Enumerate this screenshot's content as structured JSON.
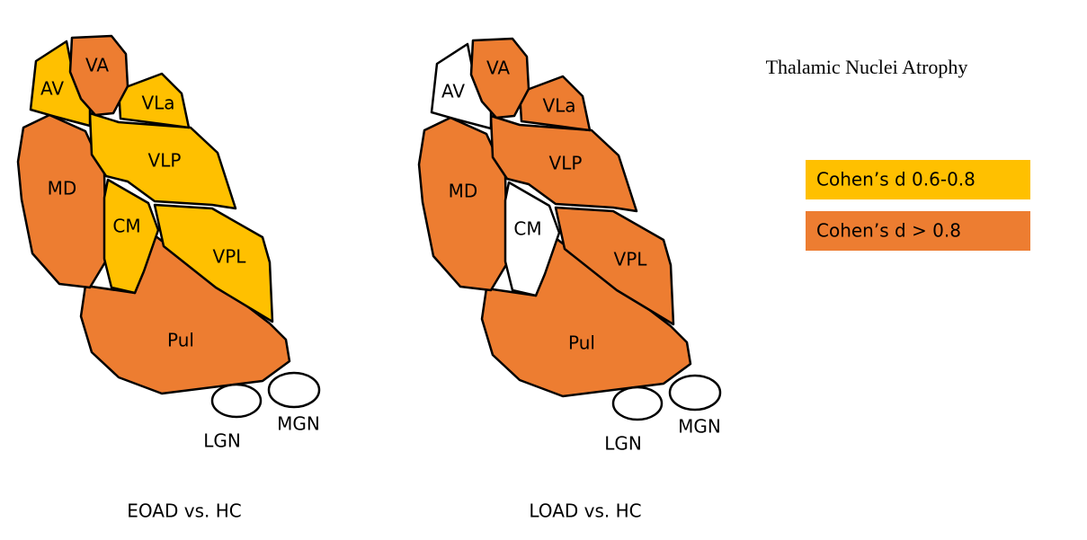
{
  "title": "Thalamic Nuclei Atrophy",
  "legend": [
    {
      "label": "Cohen’s d 0.6-0.8",
      "color": "#ffc000"
    },
    {
      "label": "Cohen’s d > 0.8",
      "color": "#ed7d31"
    }
  ],
  "panels": [
    {
      "caption": "EOAD vs. HC",
      "nuclei": [
        {
          "label": "Pul",
          "color": "#ed7d31"
        },
        {
          "label": "MD",
          "color": "#ed7d31"
        },
        {
          "label": "VPL",
          "color": "#ffc000"
        },
        {
          "label": "VLP",
          "color": "#ffc000"
        },
        {
          "label": "CM",
          "color": "#ffc000"
        },
        {
          "label": "VLa",
          "color": "#ffc000"
        },
        {
          "label": "AV",
          "color": "#ffc000"
        },
        {
          "label": "VA",
          "color": "#ed7d31"
        },
        {
          "label": "LGN",
          "color": "#ffffff"
        },
        {
          "label": "MGN",
          "color": "#ffffff"
        }
      ]
    },
    {
      "caption": "LOAD vs. HC",
      "nuclei": [
        {
          "label": "Pul",
          "color": "#ed7d31"
        },
        {
          "label": "MD",
          "color": "#ed7d31"
        },
        {
          "label": "VPL",
          "color": "#ed7d31"
        },
        {
          "label": "VLP",
          "color": "#ed7d31"
        },
        {
          "label": "CM",
          "color": "#ffffff"
        },
        {
          "label": "VLa",
          "color": "#ed7d31"
        },
        {
          "label": "AV",
          "color": "#ffffff"
        },
        {
          "label": "VA",
          "color": "#ed7d31"
        },
        {
          "label": "LGN",
          "color": "#ffffff"
        },
        {
          "label": "MGN",
          "color": "#ffffff"
        }
      ]
    }
  ]
}
